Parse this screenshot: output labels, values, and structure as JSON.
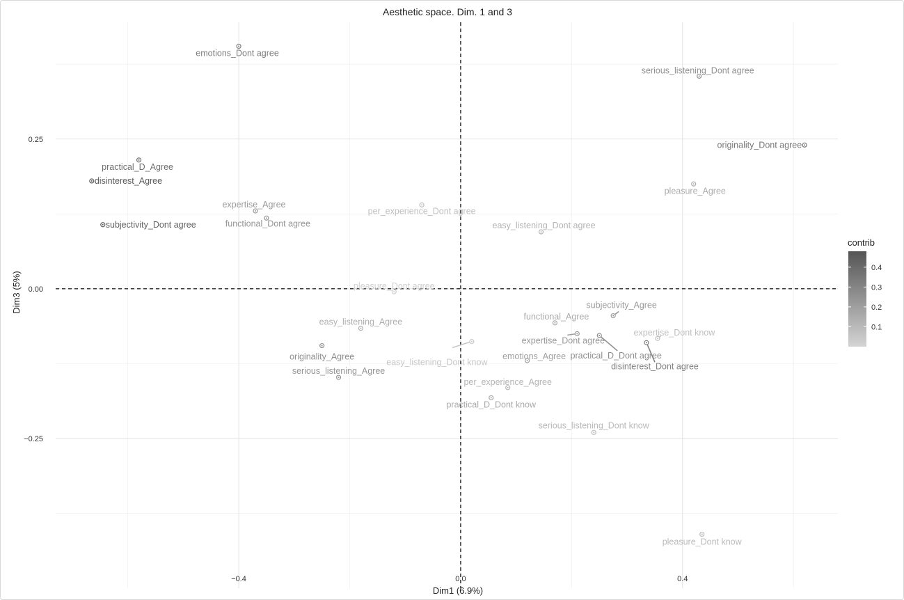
{
  "chart_data": {
    "type": "scatter",
    "title": "Aesthetic space. Dim. 1 and 3",
    "xlabel": "Dim1 (6.9%)",
    "ylabel": "Dim3 (5%)",
    "xlim": [
      -0.73,
      0.68
    ],
    "ylim": [
      -0.5,
      0.445
    ],
    "x_ticks": [
      -0.4,
      0.0,
      0.4
    ],
    "x_tick_labels": [
      "−0.4",
      "0.0",
      "0.4"
    ],
    "y_ticks": [
      0.25,
      0.0,
      -0.25
    ],
    "y_tick_labels": [
      "0.25",
      "0.00",
      "−0.25"
    ],
    "grid": true,
    "reference_lines": {
      "x": 0,
      "y": 0,
      "style": "dashed"
    },
    "legend": {
      "title": "contrib",
      "placement": "right",
      "range": [
        0.0,
        0.48
      ],
      "ticks": [
        0.4,
        0.3,
        0.2,
        0.1
      ],
      "tick_labels": [
        "0.4",
        "0.3",
        "0.2",
        "0.1"
      ],
      "color_low": "#d4d4d4",
      "color_high": "#555555"
    },
    "points": [
      {
        "label": "emotions_Dont agree",
        "x": -0.4,
        "y": 0.405,
        "contrib": 0.33
      },
      {
        "label": "serious_listening_Dont agree",
        "x": 0.43,
        "y": 0.355,
        "contrib": 0.25
      },
      {
        "label": "originality_Dont agree",
        "x": 0.62,
        "y": 0.24,
        "contrib": 0.35
      },
      {
        "label": "practical_D_Agree",
        "x": -0.58,
        "y": 0.215,
        "contrib": 0.38
      },
      {
        "label": "disinterest_Agree",
        "x": -0.665,
        "y": 0.18,
        "contrib": 0.46
      },
      {
        "label": "pleasure_Agree",
        "x": 0.42,
        "y": 0.175,
        "contrib": 0.15
      },
      {
        "label": "expertise_Agree",
        "x": -0.37,
        "y": 0.13,
        "contrib": 0.22
      },
      {
        "label": "per_experience_Dont agree",
        "x": -0.07,
        "y": 0.14,
        "contrib": 0.08
      },
      {
        "label": "functional_Dont agree",
        "x": -0.35,
        "y": 0.118,
        "contrib": 0.24
      },
      {
        "label": "subjectivity_Dont agree",
        "x": -0.645,
        "y": 0.107,
        "contrib": 0.43
      },
      {
        "label": "easy_listening_Dont agree",
        "x": 0.145,
        "y": 0.095,
        "contrib": 0.12
      },
      {
        "label": "pleasure_Dont agree",
        "x": -0.12,
        "y": -0.005,
        "contrib": 0.02
      },
      {
        "label": "subjectivity_Agree",
        "x": 0.275,
        "y": -0.045,
        "contrib": 0.22
      },
      {
        "label": "functional_Agree",
        "x": 0.17,
        "y": -0.057,
        "contrib": 0.16
      },
      {
        "label": "easy_listening_Agree",
        "x": -0.18,
        "y": -0.066,
        "contrib": 0.14
      },
      {
        "label": "expertise_Dont know",
        "x": 0.355,
        "y": -0.083,
        "contrib": 0.08
      },
      {
        "label": "expertise_Dont agree",
        "x": 0.21,
        "y": -0.075,
        "contrib": 0.22
      },
      {
        "label": "practical_D_Dont agree",
        "x": 0.25,
        "y": -0.078,
        "contrib": 0.27
      },
      {
        "label": "easy_listening_Dont know",
        "x": 0.02,
        "y": -0.088,
        "contrib": 0.05
      },
      {
        "label": "disinterest_Dont agree",
        "x": 0.335,
        "y": -0.09,
        "contrib": 0.31
      },
      {
        "label": "originality_Agree",
        "x": -0.25,
        "y": -0.095,
        "contrib": 0.26
      },
      {
        "label": "emotions_Agree",
        "x": 0.12,
        "y": -0.12,
        "contrib": 0.2
      },
      {
        "label": "serious_listening_Agree",
        "x": -0.22,
        "y": -0.148,
        "contrib": 0.24
      },
      {
        "label": "per_experience_Agree",
        "x": 0.085,
        "y": -0.165,
        "contrib": 0.12
      },
      {
        "label": "practical_D_Dont know",
        "x": 0.055,
        "y": -0.182,
        "contrib": 0.16
      },
      {
        "label": "serious_listening_Dont know",
        "x": 0.24,
        "y": -0.24,
        "contrib": 0.1
      },
      {
        "label": "pleasure_Dont know",
        "x": 0.435,
        "y": -0.41,
        "contrib": 0.1
      }
    ]
  }
}
